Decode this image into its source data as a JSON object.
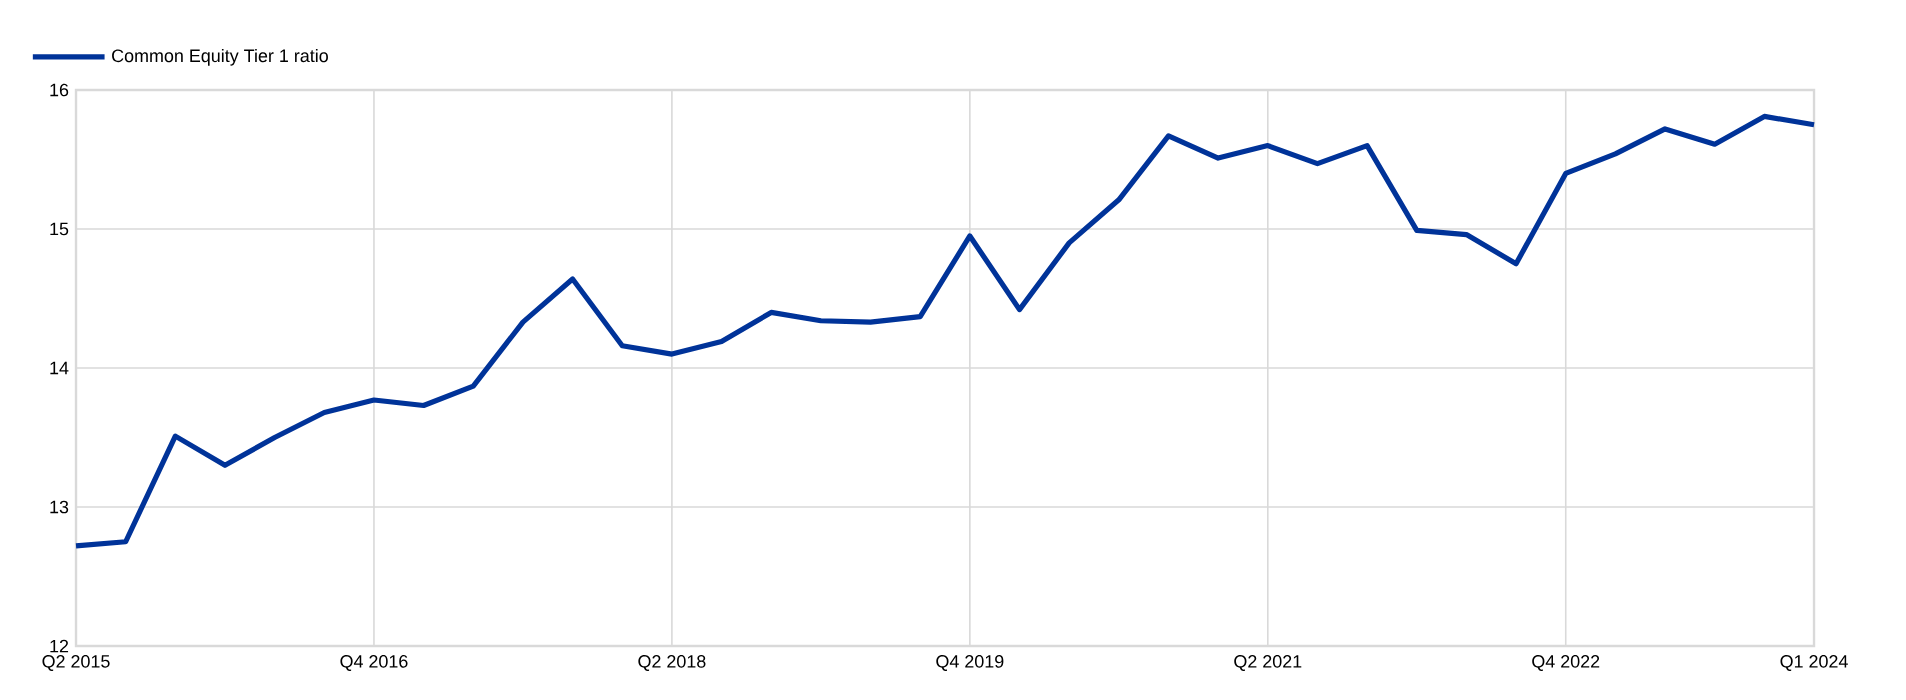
{
  "chart_data": {
    "type": "line",
    "categories": [
      "Q2 2015",
      null,
      null,
      null,
      null,
      null,
      "Q4 2016",
      null,
      null,
      null,
      null,
      null,
      "Q2 2018",
      null,
      null,
      null,
      null,
      null,
      "Q4 2019",
      null,
      null,
      null,
      null,
      null,
      "Q2 2021",
      null,
      null,
      null,
      null,
      null,
      "Q4 2022",
      null,
      null,
      null,
      null,
      "Q1 2024"
    ],
    "series": [
      {
        "name": "Common Equity Tier 1 ratio",
        "color": "#003399",
        "values": [
          12.72,
          12.75,
          13.51,
          13.3,
          13.5,
          13.68,
          13.77,
          13.73,
          13.87,
          14.33,
          14.64,
          14.16,
          14.1,
          14.19,
          14.4,
          14.34,
          14.33,
          14.37,
          14.95,
          14.42,
          14.9,
          15.21,
          15.67,
          15.51,
          15.6,
          15.47,
          15.6,
          14.99,
          14.96,
          14.75,
          15.4,
          15.54,
          15.72,
          15.61,
          15.81,
          15.75
        ]
      }
    ],
    "ylim": [
      12,
      16
    ],
    "yticks": [
      12,
      13,
      14,
      15,
      16
    ],
    "grid": true,
    "legend": "top left",
    "marker": "none",
    "line_style": "solid"
  }
}
